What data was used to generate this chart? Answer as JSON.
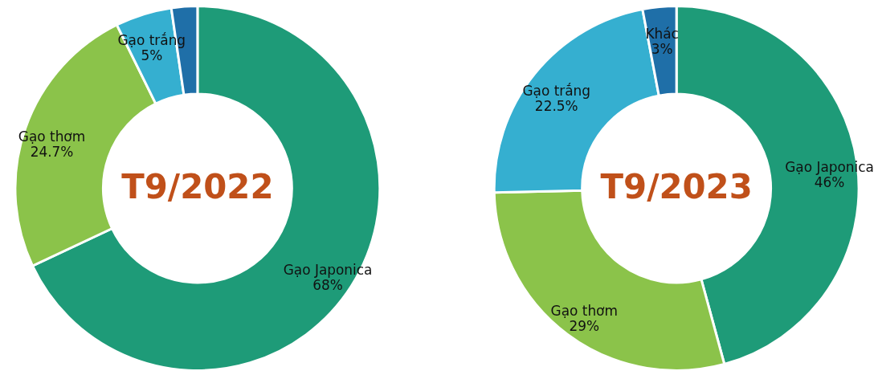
{
  "chart_data": [
    {
      "type": "donut",
      "title": "T9/2022",
      "categories": [
        "Gạo Japonica",
        "Gạo thơm",
        "Gạo trắng",
        null
      ],
      "values": [
        68,
        24.7,
        5,
        2.3
      ],
      "colors": [
        "#1e9b78",
        "#8bc34a",
        "#35afd0",
        "#1f6fa8"
      ],
      "value_labels": [
        "68%",
        "24.7%",
        "5%",
        null
      ]
    },
    {
      "type": "donut",
      "title": "T9/2023",
      "categories": [
        "Gạo Japonica",
        "Gạo thơm",
        "Gạo trắng",
        "Khác"
      ],
      "values": [
        46,
        29,
        22.5,
        3
      ],
      "colors": [
        "#1e9b78",
        "#8bc34a",
        "#35afd0",
        "#1f6fa8"
      ],
      "value_labels": [
        "46%",
        "29%",
        "22.5%",
        "3%"
      ]
    }
  ]
}
